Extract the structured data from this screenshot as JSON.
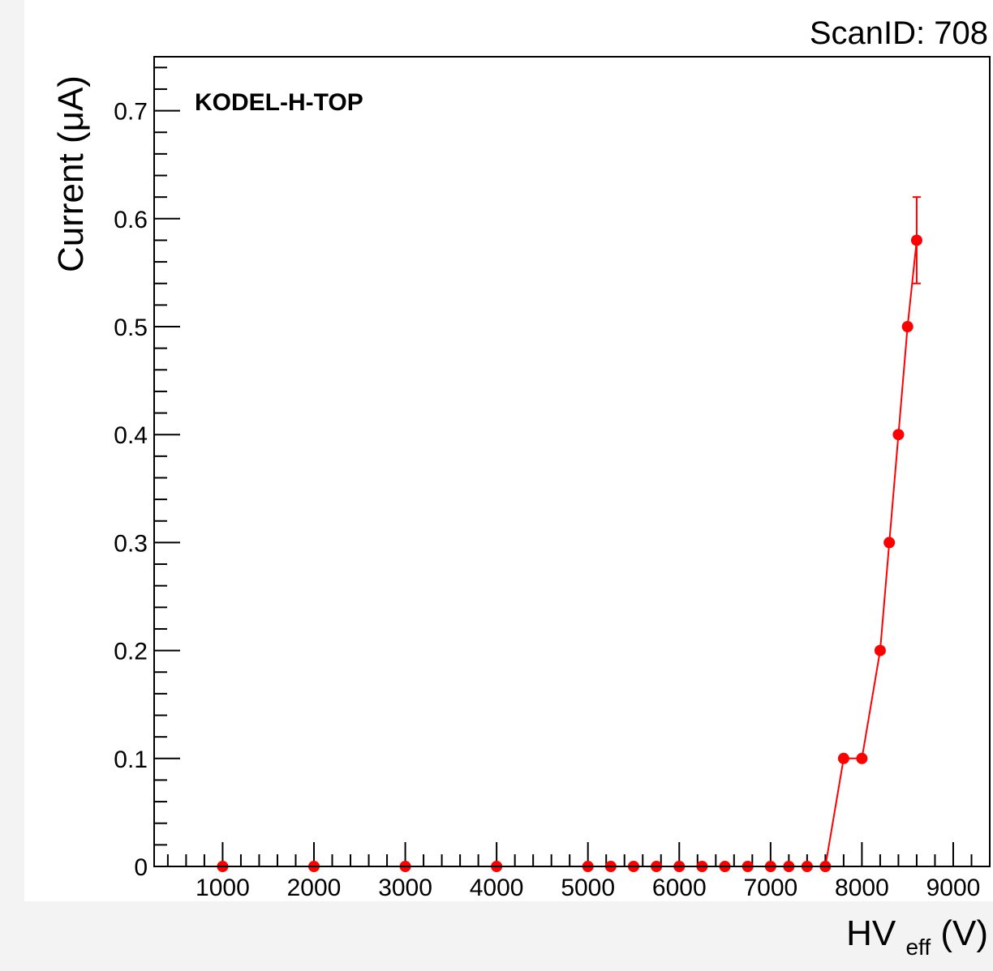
{
  "chart_data": {
    "type": "scatter",
    "title": "",
    "corner_label": "ScanID: 708",
    "annotation": "KODEL-H-TOP",
    "xlabel": {
      "main": "HV",
      "sub": "eff",
      "unit": " (V)"
    },
    "ylabel": "Current (μA)",
    "xlim": [
      250,
      9400
    ],
    "ylim": [
      0,
      0.75
    ],
    "x_ticks": [
      1000,
      2000,
      3000,
      4000,
      5000,
      6000,
      7000,
      8000,
      9000
    ],
    "x_tick_labels": [
      "1000",
      "2000",
      "3000",
      "4000",
      "5000",
      "6000",
      "7000",
      "8000",
      "9000"
    ],
    "y_ticks": [
      0,
      0.1,
      0.2,
      0.3,
      0.4,
      0.5,
      0.6,
      0.7
    ],
    "y_tick_labels": [
      "0",
      "0.1",
      "0.2",
      "0.3",
      "0.4",
      "0.5",
      "0.6",
      "0.7"
    ],
    "grid": false,
    "series": [
      {
        "color": "#ff0000",
        "x": [
          1000,
          2000,
          3000,
          4000,
          5000,
          5250,
          5500,
          5750,
          6000,
          6250,
          6500,
          6750,
          7000,
          7200,
          7400,
          7600,
          7800,
          8000,
          8200,
          8300,
          8400,
          8500,
          8600
        ],
        "y": [
          0,
          0,
          0,
          0,
          0,
          0,
          0,
          0,
          0,
          0,
          0,
          0,
          0,
          0,
          0,
          0,
          0.1,
          0.1,
          0.2,
          0.3,
          0.4,
          0.5,
          0.58
        ],
        "y_err": [
          0,
          0,
          0,
          0,
          0,
          0,
          0,
          0,
          0,
          0,
          0,
          0,
          0,
          0,
          0,
          0,
          0,
          0,
          0,
          0,
          0,
          0,
          0.04
        ]
      }
    ]
  }
}
